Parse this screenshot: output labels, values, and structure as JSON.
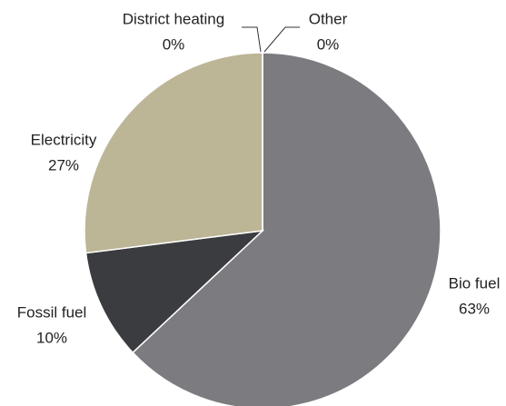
{
  "chart_data": {
    "type": "pie",
    "categories": [
      "Bio fuel",
      "Fossil fuel",
      "Electricity",
      "District heating",
      "Other"
    ],
    "values": [
      63,
      10,
      27,
      0,
      0
    ],
    "value_labels": [
      "63%",
      "10%",
      "27%",
      "0%",
      "0%"
    ],
    "colors": [
      "#7b7b80",
      "#3a3c3f",
      "#bcb596",
      "#f2f2f2",
      "#555555"
    ]
  }
}
